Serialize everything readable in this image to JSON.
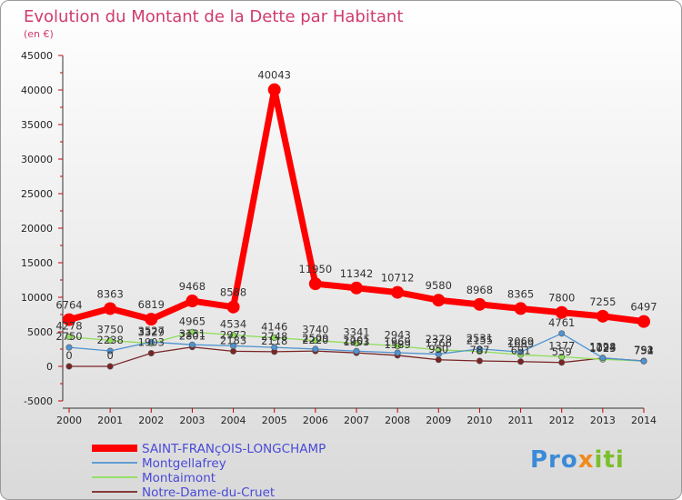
{
  "chart_data": {
    "type": "line",
    "title": "Evolution du Montant de la Dette par Habitant",
    "subtitle": "(en €)",
    "x": [
      "2000",
      "2001",
      "2002",
      "2003",
      "2004",
      "2005",
      "2006",
      "2007",
      "2008",
      "2009",
      "2010",
      "2011",
      "2012",
      "2013",
      "2014"
    ],
    "ylim": [
      -5000,
      45000
    ],
    "yticks": [
      -5000,
      0,
      5000,
      10000,
      15000,
      20000,
      25000,
      30000,
      35000,
      40000,
      45000
    ],
    "grid": false,
    "legend_position": "bottom-left",
    "series": [
      {
        "name": "SAINT-FRANçOIS-LONGCHAMP",
        "color": "#ff0000",
        "values": [
          6764,
          8363,
          6819,
          9468,
          8588,
          40043,
          11950,
          11342,
          10712,
          9580,
          8968,
          8365,
          7800,
          7255,
          6497
        ],
        "labels": [
          "6764",
          "8363",
          "6819",
          "9468",
          "8588",
          "40043",
          "11950",
          "11342",
          "10712",
          "9580",
          "8968",
          "8365",
          "7800",
          "7255",
          "6497"
        ]
      },
      {
        "name": "Montgellafrey",
        "color": "#4f93d1",
        "values": [
          2750,
          2238,
          3527,
          3131,
          2972,
          2748,
          2509,
          2201,
          1969,
          1766,
          2531,
          2069,
          4761,
          1228,
          754
        ],
        "labels": [
          "2750",
          "2238",
          "3527",
          "3131",
          "2972",
          "2748",
          "2509",
          "2201",
          "1969",
          "1766",
          "2531",
          "2069",
          "4761",
          "1228",
          "754"
        ]
      },
      {
        "name": "Montaimont",
        "color": "#8fde5a",
        "values": [
          4278,
          3750,
          3329,
          4965,
          4534,
          4146,
          3740,
          3341,
          2943,
          2379,
          2155,
          1689,
          1377,
          1023,
          752
        ],
        "labels": [
          "4278",
          "3750",
          "3329",
          "4965",
          "4534",
          "4146",
          "3740",
          "3341",
          "2943",
          "2379",
          "2155",
          "1689",
          "1377",
          "1023",
          "752"
        ]
      },
      {
        "name": "Notre-Dame-du-Cruet",
        "color": "#7a2424",
        "values": [
          0,
          0,
          1903,
          2801,
          2183,
          2118,
          2220,
          1953,
          1589,
          950,
          787,
          691,
          559,
          1194,
          791
        ],
        "labels": [
          "0",
          "0",
          "1903",
          "2801",
          "2183",
          "2118",
          "2220",
          "1953",
          "1589",
          "950",
          "787",
          "691",
          "559",
          "1194",
          "791"
        ]
      }
    ]
  },
  "logo": {
    "part1": "Pro",
    "part2": "x",
    "part3": "iti"
  }
}
